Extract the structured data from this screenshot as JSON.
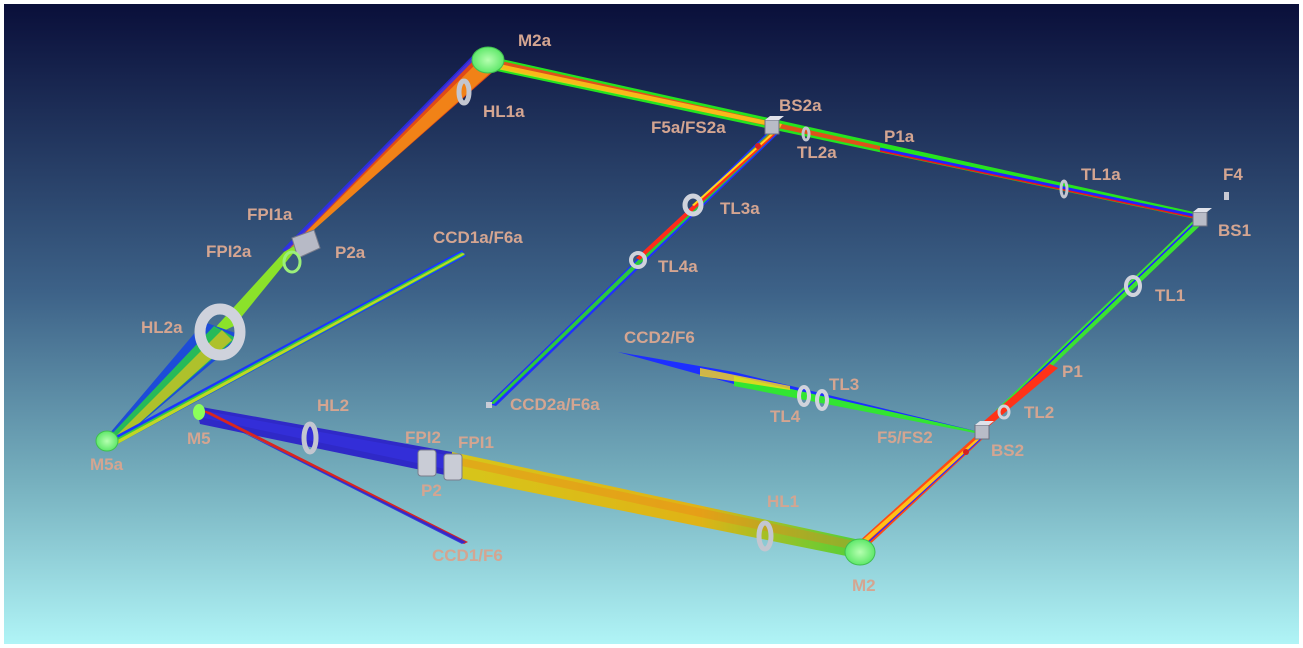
{
  "diagram": {
    "background": {
      "top_color": "#0a0f3a",
      "bottom_color": "#b0f4f6"
    },
    "label_color": "#d4a591",
    "labels": {
      "m2a": "M2a",
      "hl1a": "HL1a",
      "bs2a": "BS2a",
      "f5a_fs2a": "F5a/FS2a",
      "tl2a": "TL2a",
      "p1a": "P1a",
      "tl1a": "TL1a",
      "f4": "F4",
      "bs1": "BS1",
      "fpi1a": "FPI1a",
      "fpi2a": "FPI2a",
      "p2a": "P2a",
      "ccd1a_f6a": "CCD1a/F6a",
      "tl3a": "TL3a",
      "tl4a": "TL4a",
      "tl1": "TL1",
      "hl2a": "HL2a",
      "ccd2_f6": "CCD2/F6",
      "p1": "P1",
      "tl3": "TL3",
      "tl4": "TL4",
      "tl2": "TL2",
      "hl2": "HL2",
      "ccd2a_f6a": "CCD2a/F6a",
      "fpi2": "FPI2",
      "fpi1": "FPI1",
      "f5_fs2": "F5/FS2",
      "bs2": "BS2",
      "m5a": "M5a",
      "m5": "M5",
      "p2": "P2",
      "hl1": "HL1",
      "ccd1_f6": "CCD1/F6",
      "m2": "M2"
    }
  }
}
